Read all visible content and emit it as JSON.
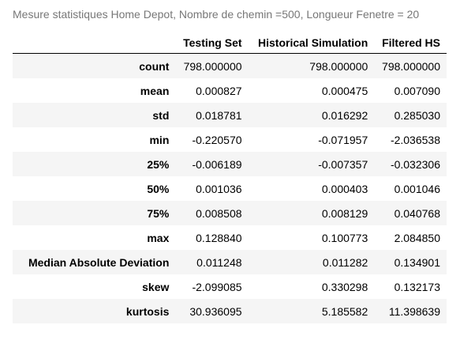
{
  "caption": "Mesure statistiques Home Depot, Nombre de chemin =500, Longueur Fenetre = 20",
  "table": {
    "columns": [
      "",
      "Testing Set",
      "Historical Simulation",
      "Filtered HS"
    ],
    "rows": [
      {
        "label": "count",
        "values": [
          "798.000000",
          "798.000000",
          "798.000000"
        ]
      },
      {
        "label": "mean",
        "values": [
          "0.000827",
          "0.000475",
          "0.007090"
        ]
      },
      {
        "label": "std",
        "values": [
          "0.018781",
          "0.016292",
          "0.285030"
        ]
      },
      {
        "label": "min",
        "values": [
          "-0.220570",
          "-0.071957",
          "-2.036538"
        ]
      },
      {
        "label": "25%",
        "values": [
          "-0.006189",
          "-0.007357",
          "-0.032306"
        ]
      },
      {
        "label": "50%",
        "values": [
          "0.001036",
          "0.000403",
          "0.001046"
        ]
      },
      {
        "label": "75%",
        "values": [
          "0.008508",
          "0.008129",
          "0.040768"
        ]
      },
      {
        "label": "max",
        "values": [
          "0.128840",
          "0.100773",
          "2.084850"
        ]
      },
      {
        "label": "Median Absolute Deviation",
        "values": [
          "0.011248",
          "0.011282",
          "0.134901"
        ]
      },
      {
        "label": "skew",
        "values": [
          "-2.099085",
          "0.330298",
          "0.132173"
        ]
      },
      {
        "label": "kurtosis",
        "values": [
          "30.936095",
          "5.185582",
          "11.398639"
        ]
      }
    ]
  }
}
